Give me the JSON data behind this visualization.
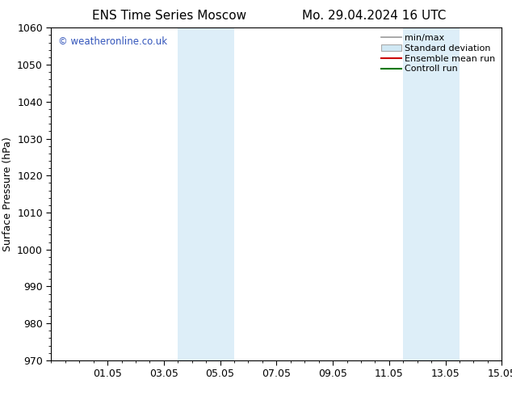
{
  "title_left": "ENS Time Series Moscow",
  "title_right": "Mo. 29.04.2024 16 UTC",
  "ylabel": "Surface Pressure (hPa)",
  "ylim": [
    970,
    1060
  ],
  "yticks": [
    970,
    980,
    990,
    1000,
    1010,
    1020,
    1030,
    1040,
    1050,
    1060
  ],
  "xlim": [
    0,
    16
  ],
  "xtick_labels": [
    "01.05",
    "03.05",
    "05.05",
    "07.05",
    "09.05",
    "11.05",
    "13.05",
    "15.05"
  ],
  "xtick_positions": [
    2,
    4,
    6,
    8,
    10,
    12,
    14,
    16
  ],
  "shaded_bands": [
    {
      "x_start": 4.5,
      "x_end": 6.5
    },
    {
      "x_start": 12.5,
      "x_end": 14.5
    }
  ],
  "shaded_color": "#ddeef8",
  "watermark": "© weatheronline.co.uk",
  "watermark_color": "#3355bb",
  "bg_color": "#ffffff",
  "spine_color": "#000000",
  "font_family": "DejaVu Sans",
  "title_fontsize": 11,
  "label_fontsize": 9,
  "tick_fontsize": 9,
  "legend_fontsize": 8,
  "minmax_color": "#999999",
  "std_facecolor": "#d0e8f4",
  "std_edgecolor": "#aaaaaa",
  "ensemble_color": "#cc0000",
  "control_color": "#007700"
}
